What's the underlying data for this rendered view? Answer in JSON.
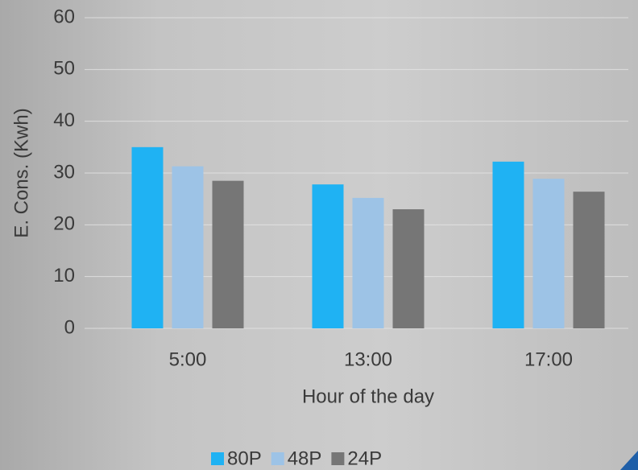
{
  "chart_data": {
    "type": "bar",
    "x_label": "Hour of the day",
    "y_label": "E. Cons. (Kwh)",
    "categories": [
      "5:00",
      "13:00",
      "17:00"
    ],
    "series": [
      {
        "name": "80P",
        "color": "#1fb2f3",
        "values": [
          35.0,
          27.8,
          32.2
        ]
      },
      {
        "name": "48P",
        "color": "#9dc3e6",
        "values": [
          31.3,
          25.2,
          28.9
        ]
      },
      {
        "name": "24P",
        "color": "#767676",
        "values": [
          28.5,
          23.0,
          26.4
        ]
      }
    ],
    "ylim": [
      0,
      60
    ],
    "yticks": [
      0,
      10,
      20,
      30,
      40,
      50,
      60
    ],
    "grid": true,
    "legend": "bottom"
  }
}
